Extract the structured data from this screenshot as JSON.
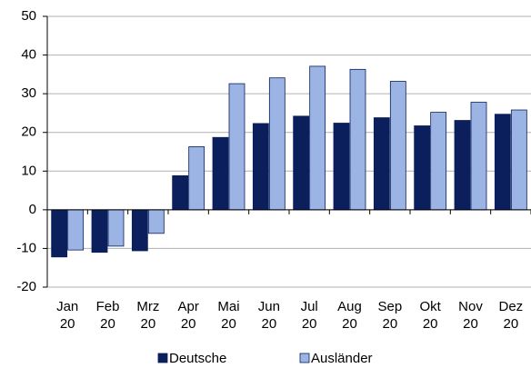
{
  "chart_data": {
    "type": "bar",
    "categories": [
      "Jan 20",
      "Feb 20",
      "Mrz 20",
      "Apr 20",
      "Mai 20",
      "Jun 20",
      "Jul 20",
      "Aug 20",
      "Sep 20",
      "Okt 20",
      "Nov 20",
      "Dez 20"
    ],
    "series": [
      {
        "name": "Deutsche",
        "color": "#0b1f5c",
        "values": [
          -12.2,
          -11,
          -10.6,
          8.8,
          18.7,
          22.3,
          24.2,
          22.4,
          23.8,
          21.7,
          23.1,
          24.7
        ]
      },
      {
        "name": "Ausländer",
        "color": "#9bb4e4",
        "values": [
          -10.4,
          -9.4,
          -6.1,
          16.3,
          32.6,
          34.1,
          37.1,
          36.3,
          33.2,
          25.2,
          27.8,
          25.8
        ]
      }
    ],
    "ylim": [
      -20,
      50
    ],
    "yticks": [
      -20,
      -10,
      0,
      10,
      20,
      30,
      40,
      50
    ],
    "grid": true,
    "legend": "bottom"
  }
}
